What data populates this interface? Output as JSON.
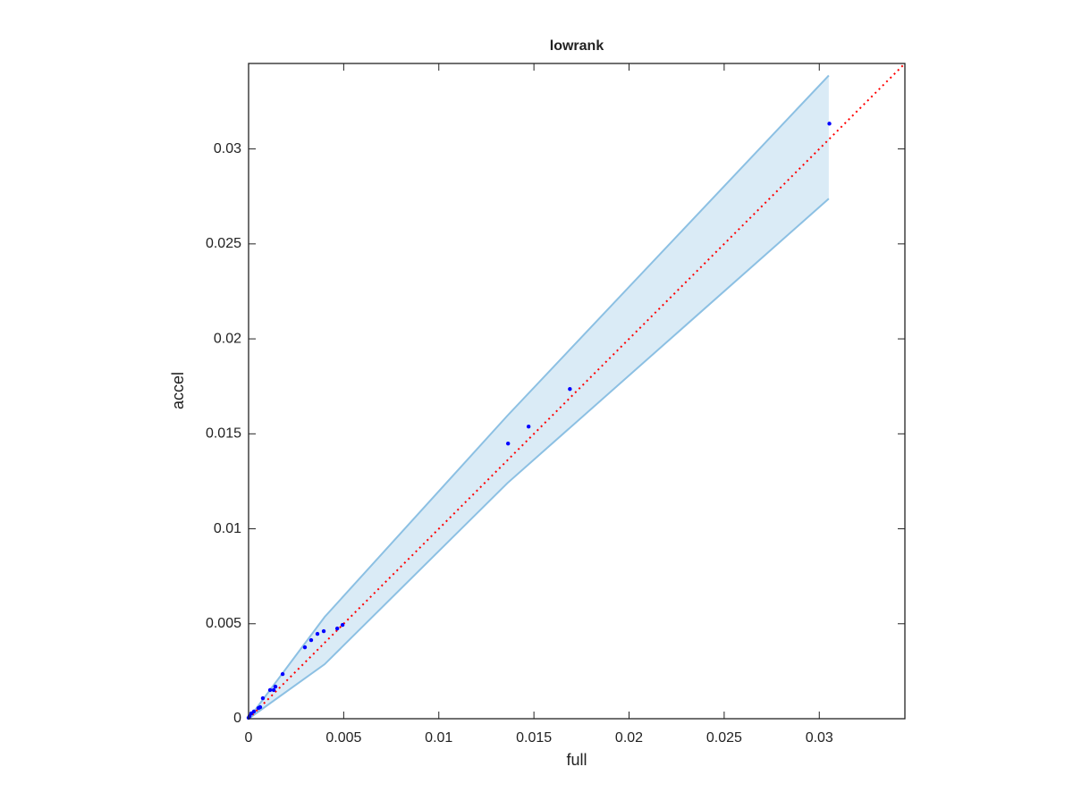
{
  "chart_data": {
    "type": "scatter",
    "title": "lowrank",
    "x_label": "full",
    "y_label": "accel",
    "xlim": [
      0,
      0.0345
    ],
    "ylim": [
      0,
      0.0345
    ],
    "xticks": [
      0,
      0.005,
      0.01,
      0.015,
      0.02,
      0.025,
      0.03
    ],
    "yticks": [
      0,
      0.005,
      0.01,
      0.015,
      0.02,
      0.025,
      0.03
    ],
    "band": {
      "color": "#8cc0e3",
      "x": [
        0,
        0.004,
        0.0136,
        0.0305
      ],
      "upper": [
        0,
        0.00536,
        0.01595,
        0.03387
      ],
      "lower": [
        0,
        0.00287,
        0.0124,
        0.02738
      ]
    },
    "reference_line": {
      "color": "#ff0000",
      "x": [
        0,
        0.0345
      ],
      "y": [
        0,
        0.0345
      ]
    },
    "points": {
      "color": "#0000ff",
      "x": [
        0.03053,
        0.01689,
        0.01472,
        0.01364,
        0.00494,
        0.00466,
        0.00395,
        0.00362,
        0.00329,
        0.00296,
        0.00179,
        0.00141,
        0.00132,
        0.00113,
        0.00075,
        0.00061,
        0.00052,
        0.00028,
        0.00014,
        5e-05,
        0
      ],
      "y": [
        0.03133,
        0.01736,
        0.01538,
        0.01449,
        0.00494,
        0.00475,
        0.00461,
        0.00447,
        0.00414,
        0.00376,
        0.00235,
        0.00169,
        0.00151,
        0.00151,
        0.00108,
        0.00061,
        0.00056,
        0.00038,
        0.00028,
        0.00014,
        5e-05
      ]
    }
  }
}
